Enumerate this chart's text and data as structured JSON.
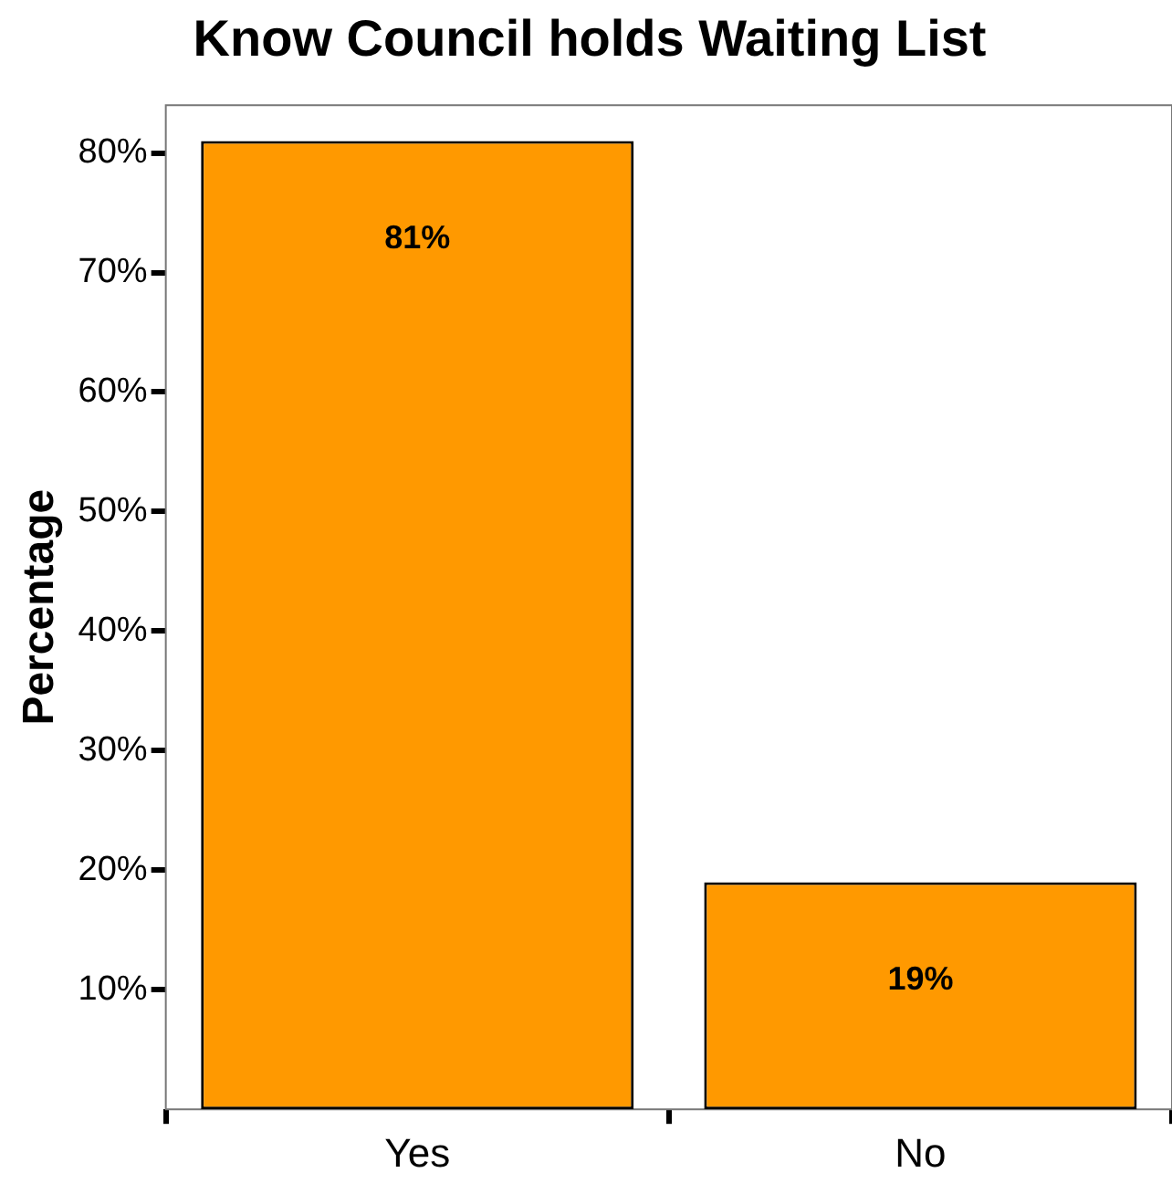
{
  "chart_data": {
    "type": "bar",
    "title": "Know Council holds Waiting List",
    "ylabel": "Percentage",
    "categories": [
      "Yes",
      "No"
    ],
    "values": [
      81,
      19
    ],
    "value_labels": [
      "81%",
      "19%"
    ],
    "color": "#ff9900",
    "ylim": [
      0,
      84
    ],
    "yticks": [
      {
        "value": 10,
        "label": "10%"
      },
      {
        "value": 20,
        "label": "20%"
      },
      {
        "value": 30,
        "label": "30%"
      },
      {
        "value": 40,
        "label": "40%"
      },
      {
        "value": 50,
        "label": "50%"
      },
      {
        "value": 60,
        "label": "60%"
      },
      {
        "value": 70,
        "label": "70%"
      },
      {
        "value": 80,
        "label": "80%"
      }
    ],
    "grid": false,
    "legend": false
  }
}
